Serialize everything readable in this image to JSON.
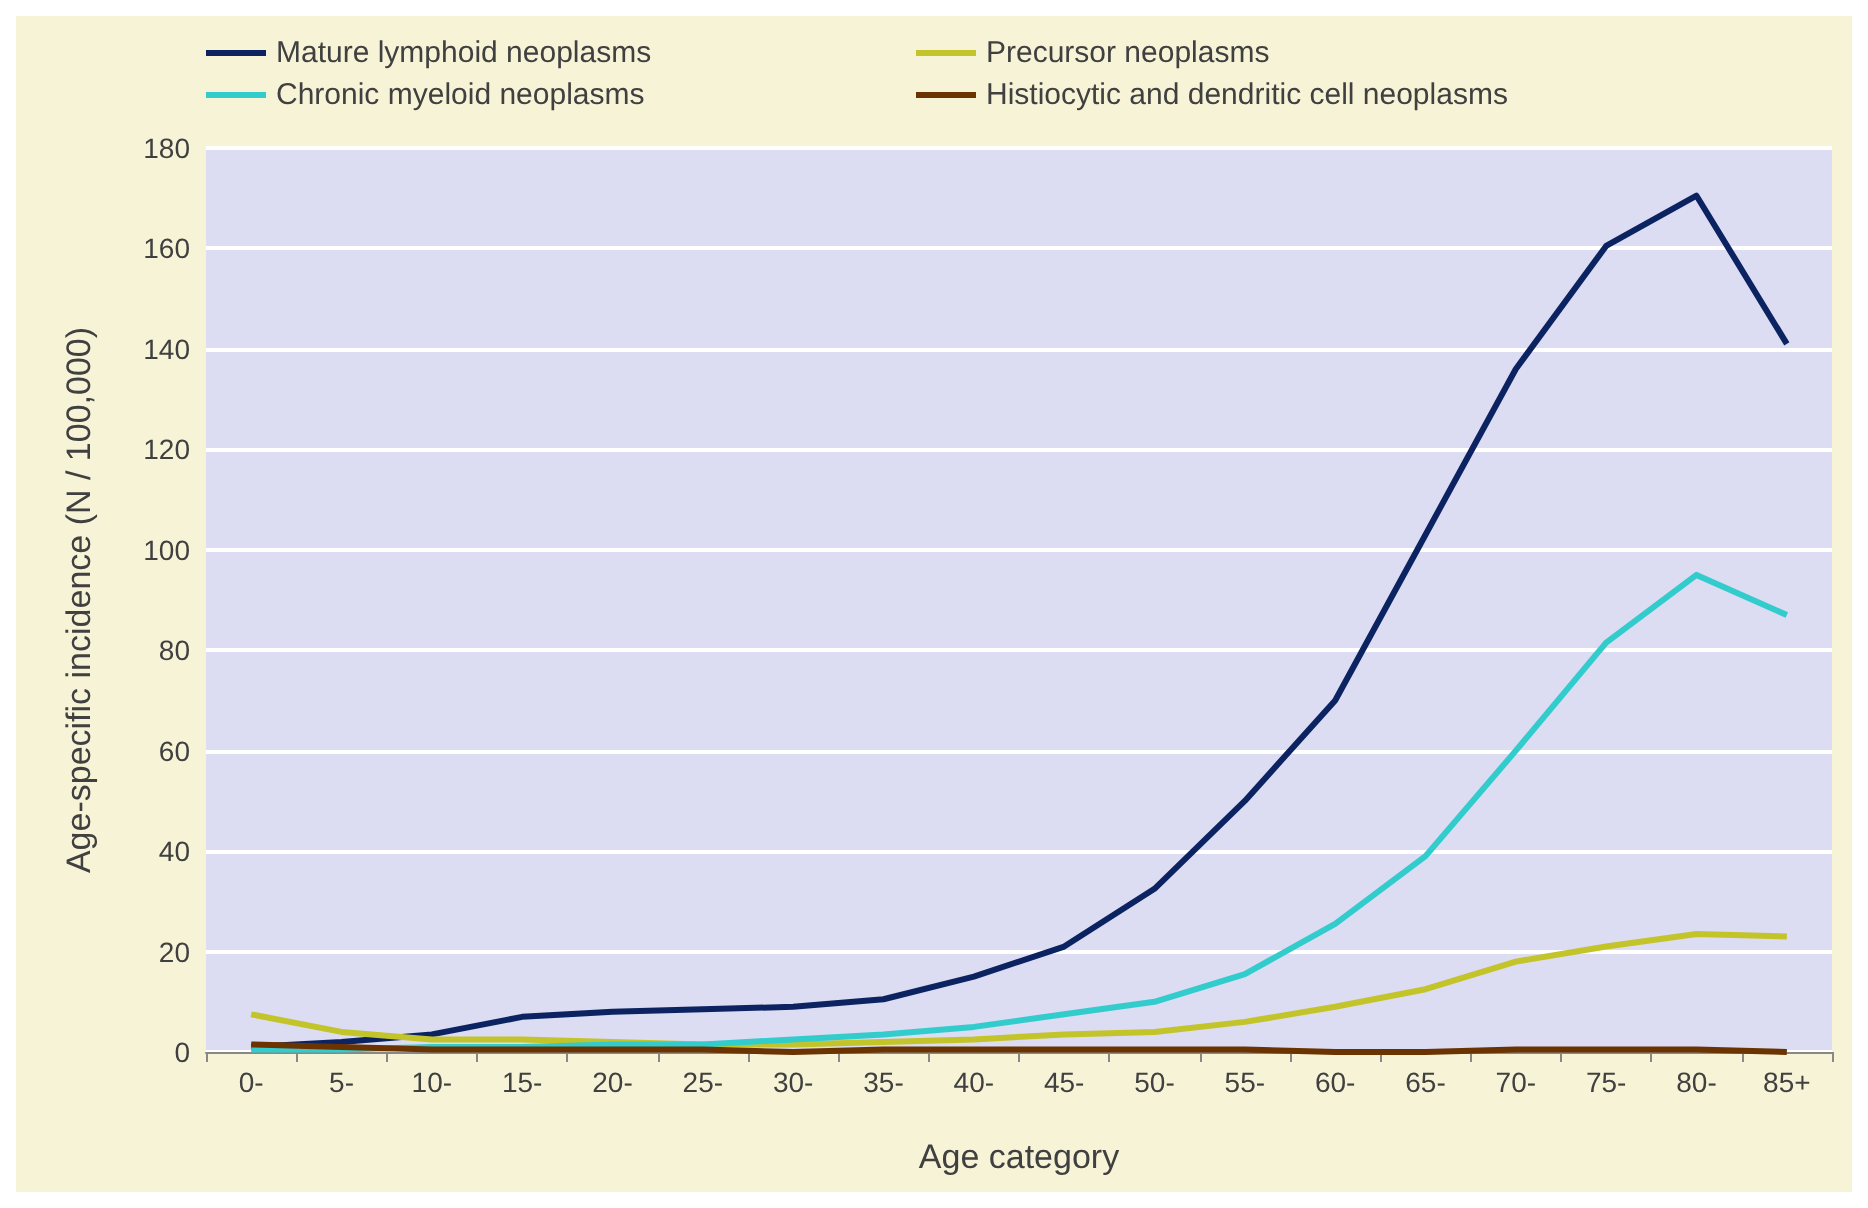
{
  "chart_data": {
    "type": "line",
    "xlabel": "Age category",
    "ylabel": "Age-specific incidence (N / 100,000)",
    "categories": [
      "0-",
      "5-",
      "10-",
      "15-",
      "20-",
      "25-",
      "30-",
      "35-",
      "40-",
      "45-",
      "50-",
      "55-",
      "60-",
      "65-",
      "70-",
      "75-",
      "80-",
      "85+"
    ],
    "series": [
      {
        "name": "Mature lymphoid neoplasms",
        "color": "#0b2361",
        "values": [
          1,
          2,
          3.5,
          7,
          8,
          8.5,
          9,
          10.5,
          15,
          21,
          32.5,
          50,
          70,
          103,
          136,
          160.5,
          170.5,
          141
        ]
      },
      {
        "name": "Precursor neoplasms",
        "color": "#c3c32a",
        "values": [
          7.5,
          4,
          2.5,
          2.5,
          2,
          1.5,
          1.5,
          2,
          2.5,
          3.5,
          4,
          6,
          9,
          12.5,
          18,
          21,
          23.5,
          23
        ]
      },
      {
        "name": "Chronic myeloid neoplasms",
        "color": "#33cccc",
        "values": [
          0.5,
          0.5,
          1,
          1,
          1.5,
          1.5,
          2.5,
          3.5,
          5,
          7.5,
          10,
          15.5,
          25.5,
          39,
          60,
          81.5,
          95,
          87
        ]
      },
      {
        "name": "Histiocytic and dendritic cell neoplasms",
        "color": "#6b3300",
        "values": [
          1.5,
          1,
          0.5,
          0.5,
          0.5,
          0.5,
          0,
          0.5,
          0.5,
          0.5,
          0.5,
          0.5,
          0,
          0,
          0.5,
          0.5,
          0.5,
          0
        ]
      }
    ],
    "ylim": [
      0,
      180
    ],
    "yticks": [
      0,
      20,
      40,
      60,
      80,
      100,
      120,
      140,
      160,
      180
    ],
    "grid": "y",
    "legend": "top",
    "marker": "none",
    "line_style": "solid"
  }
}
